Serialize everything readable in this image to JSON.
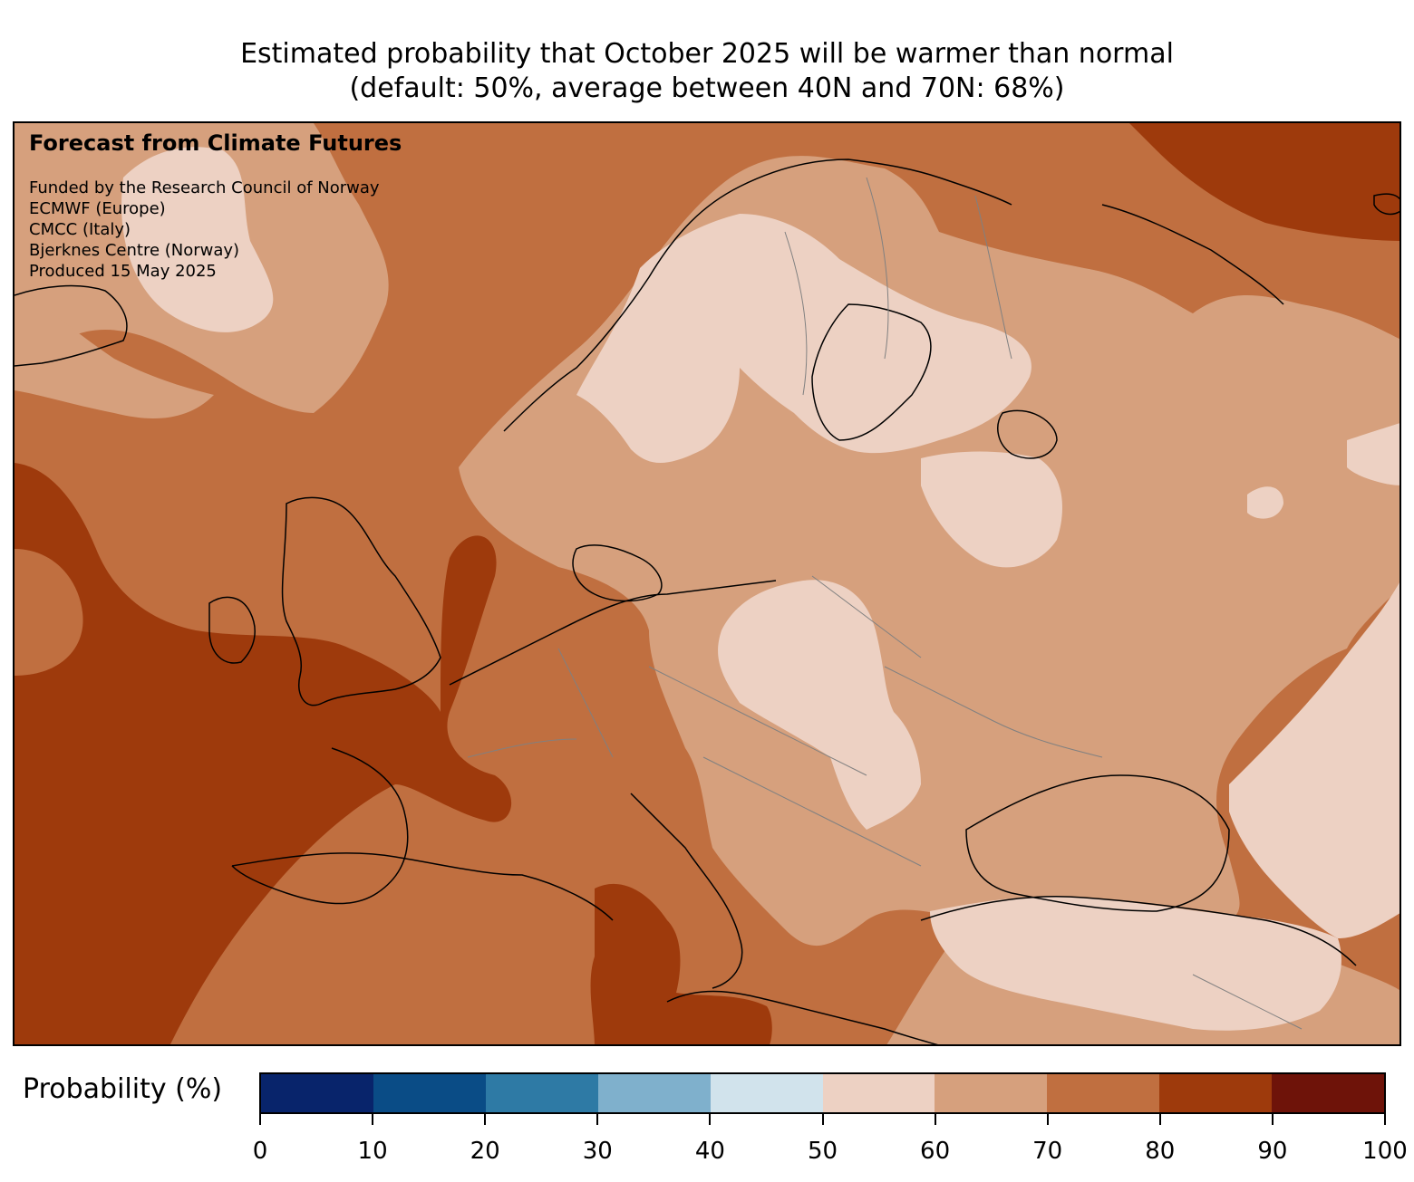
{
  "title": {
    "line1": "Estimated probability that October 2025 will be warmer than normal",
    "line2": "(default: 50%, average between 40N and 70N: 68%)"
  },
  "overlay": {
    "heading": "Forecast from Climate Futures",
    "credits": [
      "Funded by the Research Council of Norway",
      "ECMWF (Europe)",
      "CMCC (Italy)",
      "Bjerknes Centre (Norway)",
      "Produced 15 May 2025"
    ]
  },
  "colorbar": {
    "label": "Probability (%)",
    "ticks": [
      "0",
      "10",
      "20",
      "30",
      "40",
      "50",
      "60",
      "70",
      "80",
      "90",
      "100"
    ],
    "colors": [
      "#08246b",
      "#0a4c86",
      "#2e7aa5",
      "#7fb0cc",
      "#d1e3ec",
      "#edd1c3",
      "#d6a07d",
      "#c06f40",
      "#9e3a0c",
      "#6e1309"
    ]
  },
  "map": {
    "region": "Europe",
    "bin_colors": {
      "50-60": "#edd1c3",
      "60-70": "#d6a07d",
      "70-80": "#c06f40",
      "80-90": "#9e3a0c"
    }
  }
}
